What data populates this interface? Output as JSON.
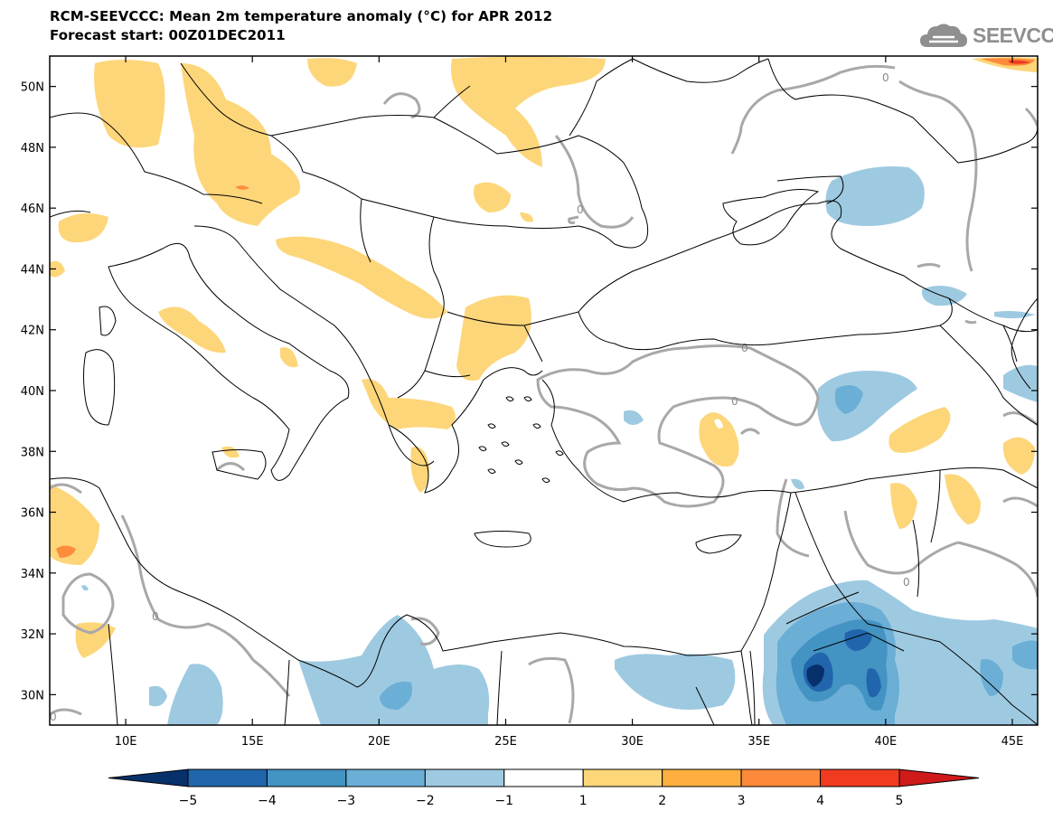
{
  "title": {
    "line1": "RCM-SEEVCCC: Mean 2m temperature anomaly (°C) for APR 2012",
    "line2": "Forecast start: 00Z01DEC2011"
  },
  "logo": {
    "text": "SEEVCCC",
    "icon": "cloud-icon"
  },
  "map": {
    "lon_range": [
      7,
      46
    ],
    "lat_range": [
      29,
      51
    ],
    "lon_ticks": [
      {
        "value": 10,
        "label": "10E"
      },
      {
        "value": 15,
        "label": "15E"
      },
      {
        "value": 20,
        "label": "20E"
      },
      {
        "value": 25,
        "label": "25E"
      },
      {
        "value": 30,
        "label": "30E"
      },
      {
        "value": 35,
        "label": "35E"
      },
      {
        "value": 40,
        "label": "40E"
      },
      {
        "value": 45,
        "label": "45E"
      }
    ],
    "lat_ticks": [
      {
        "value": 30,
        "label": "30N"
      },
      {
        "value": 32,
        "label": "32N"
      },
      {
        "value": 34,
        "label": "34N"
      },
      {
        "value": 36,
        "label": "36N"
      },
      {
        "value": 38,
        "label": "38N"
      },
      {
        "value": 40,
        "label": "40N"
      },
      {
        "value": 42,
        "label": "42N"
      },
      {
        "value": 44,
        "label": "44N"
      },
      {
        "value": 46,
        "label": "46N"
      },
      {
        "value": 48,
        "label": "48N"
      },
      {
        "value": 50,
        "label": "50N"
      }
    ],
    "contour_label": "0"
  },
  "colorbar": {
    "labels": [
      "−5",
      "−4",
      "−3",
      "−2",
      "−1",
      "1",
      "2",
      "3",
      "4",
      "5"
    ],
    "colors": [
      "#08306b",
      "#2166ac",
      "#4393c3",
      "#6baed6",
      "#9ecae1",
      "#ffffff",
      "#fdd67a",
      "#fdae3e",
      "#fc8a3a",
      "#f03b20",
      "#cf1a1a"
    ]
  },
  "colors": {
    "warm1": "#fdd67a",
    "warm2": "#fdae3e",
    "warm3": "#f03b20",
    "cool1": "#9ecae1",
    "cool2": "#6baed6",
    "cool3": "#4393c3",
    "cool4": "#2166ac",
    "cool5": "#08306b",
    "contour": "#a8a8a8",
    "border": "#000000"
  }
}
